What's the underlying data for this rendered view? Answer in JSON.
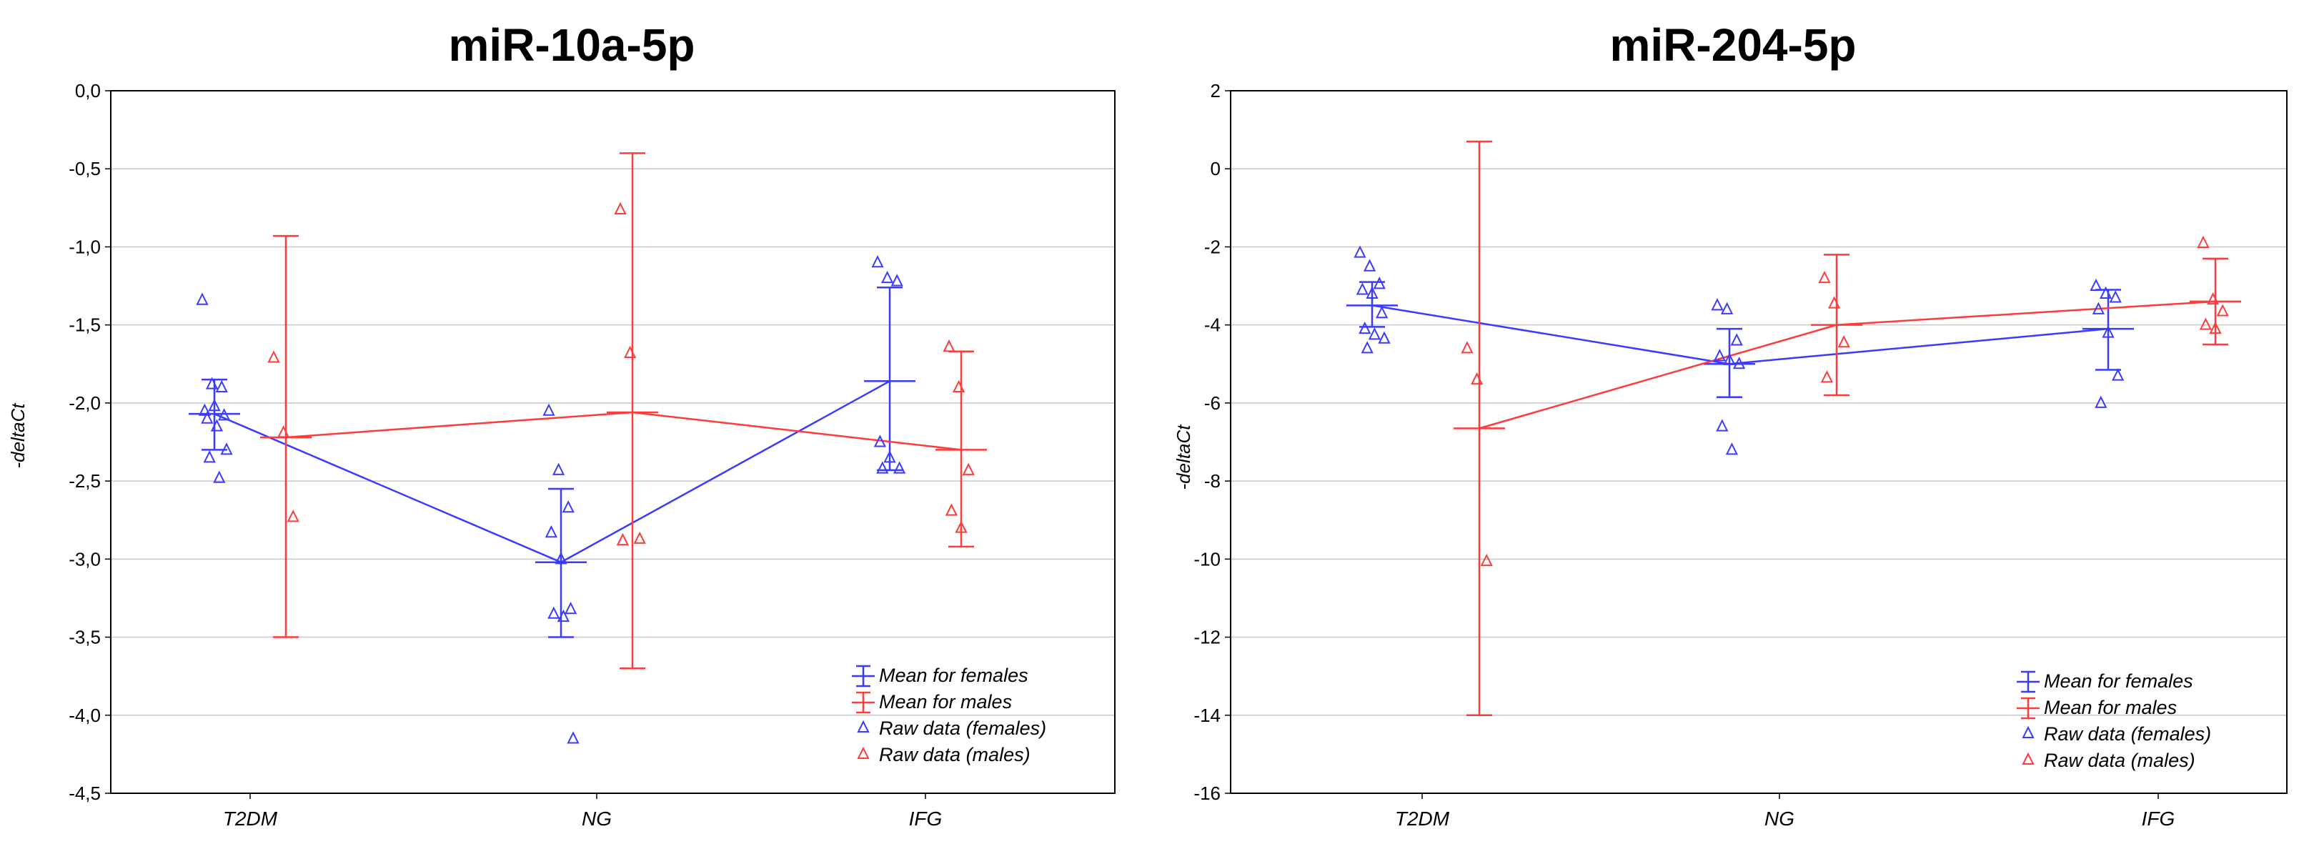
{
  "chart_data": [
    {
      "type": "line",
      "title": "miR-10a-5p",
      "xlabel": "",
      "ylabel": "-deltaCt",
      "categories": [
        "T2DM",
        "NG",
        "IFG"
      ],
      "ylim": [
        -4.5,
        0
      ],
      "yticks": [
        0,
        -0.5,
        -1,
        -1.5,
        -2,
        -2.5,
        -3,
        -3.5,
        -4,
        -4.5
      ],
      "ytick_labels": [
        "0,0",
        "-0,5",
        "-1,0",
        "-1,5",
        "-2,0",
        "-2,5",
        "-3,0",
        "-3,5",
        "-4,0",
        "-4,5"
      ],
      "grid": true,
      "legend_position": "bottom-right",
      "colors": {
        "females": "#3b3bff",
        "males": "#ff3b3b"
      },
      "legend": [
        "Mean for females",
        "Mean for males",
        "Raw data (females)",
        "Raw data (males)"
      ],
      "series": [
        {
          "name": "Mean for females",
          "group": "females",
          "values": [
            -2.07,
            -3.02,
            -1.86
          ],
          "lower": [
            -2.3,
            -3.5,
            -2.43
          ],
          "upper": [
            -1.85,
            -2.55,
            -1.26
          ]
        },
        {
          "name": "Mean for males",
          "group": "males",
          "values": [
            -2.22,
            -2.06,
            -2.3
          ],
          "lower": [
            -3.5,
            -3.7,
            -2.92
          ],
          "upper": [
            -0.93,
            -0.4,
            -1.67
          ]
        }
      ],
      "raw": [
        {
          "group": "females",
          "category": "T2DM",
          "values": [
            -1.34,
            -1.88,
            -1.9,
            -2.05,
            -2.02,
            -2.08,
            -2.1,
            -2.15,
            -2.3,
            -2.35,
            -2.48
          ]
        },
        {
          "group": "females",
          "category": "NG",
          "values": [
            -2.05,
            -2.43,
            -2.67,
            -2.83,
            -3.0,
            -3.32,
            -3.35,
            -3.37,
            -4.15
          ]
        },
        {
          "group": "females",
          "category": "IFG",
          "values": [
            -1.1,
            -1.2,
            -1.22,
            -2.25,
            -2.35,
            -2.42,
            -2.42
          ]
        },
        {
          "group": "males",
          "category": "T2DM",
          "values": [
            -1.71,
            -2.19,
            -2.73
          ]
        },
        {
          "group": "males",
          "category": "NG",
          "values": [
            -0.76,
            -1.68,
            -2.87,
            -2.88
          ]
        },
        {
          "group": "males",
          "category": "IFG",
          "values": [
            -1.64,
            -1.9,
            -2.43,
            -2.69,
            -2.8
          ]
        }
      ]
    },
    {
      "type": "line",
      "title": "miR-204-5p",
      "xlabel": "",
      "ylabel": "-deltaCt",
      "categories": [
        "T2DM",
        "NG",
        "IFG"
      ],
      "ylim": [
        -16,
        2
      ],
      "yticks": [
        2,
        0,
        -2,
        -4,
        -6,
        -8,
        -10,
        -12,
        -14,
        -16
      ],
      "ytick_labels": [
        "2",
        "0",
        "-2",
        "-4",
        "-6",
        "-8",
        "-10",
        "-12",
        "-14",
        "-16"
      ],
      "grid": true,
      "legend_position": "bottom-right",
      "colors": {
        "females": "#3b3bff",
        "males": "#ff3b3b"
      },
      "legend": [
        "Mean for females",
        "Mean for males",
        "Raw data (females)",
        "Raw data (males)"
      ],
      "series": [
        {
          "name": "Mean for females",
          "group": "females",
          "values": [
            -3.5,
            -5.0,
            -4.1
          ],
          "lower": [
            -4.05,
            -5.85,
            -5.15
          ],
          "upper": [
            -2.9,
            -4.1,
            -3.1
          ]
        },
        {
          "name": "Mean for males",
          "group": "males",
          "values": [
            -6.65,
            -4.0,
            -3.4
          ],
          "lower": [
            -14.0,
            -5.8,
            -4.5
          ],
          "upper": [
            0.7,
            -2.2,
            -2.3
          ]
        }
      ],
      "raw": [
        {
          "group": "females",
          "category": "T2DM",
          "values": [
            -2.15,
            -2.5,
            -2.95,
            -3.1,
            -3.2,
            -3.7,
            -4.1,
            -4.25,
            -4.35,
            -4.6
          ]
        },
        {
          "group": "females",
          "category": "NG",
          "values": [
            -3.5,
            -3.6,
            -4.4,
            -4.8,
            -4.9,
            -5.0,
            -6.6,
            -7.2
          ]
        },
        {
          "group": "females",
          "category": "IFG",
          "values": [
            -3.0,
            -3.2,
            -3.3,
            -3.6,
            -4.2,
            -5.3,
            -6.0
          ]
        },
        {
          "group": "males",
          "category": "T2DM",
          "values": [
            -4.6,
            -5.4,
            -10.05
          ]
        },
        {
          "group": "males",
          "category": "NG",
          "values": [
            -2.8,
            -3.45,
            -4.45,
            -5.35
          ]
        },
        {
          "group": "males",
          "category": "IFG",
          "values": [
            -1.9,
            -3.35,
            -3.65,
            -4.0,
            -4.1
          ]
        }
      ]
    }
  ]
}
